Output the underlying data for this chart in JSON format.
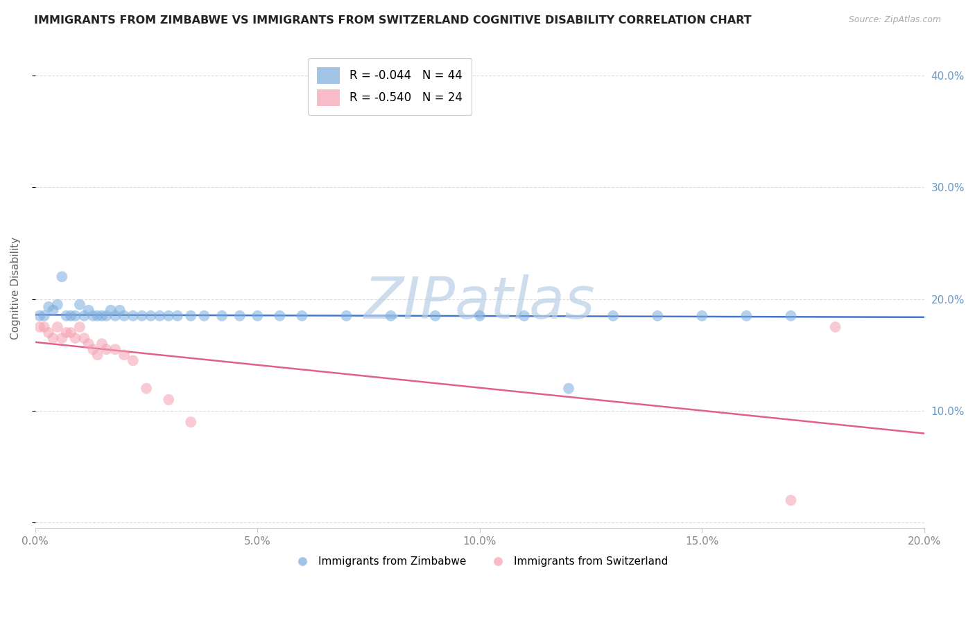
{
  "title": "IMMIGRANTS FROM ZIMBABWE VS IMMIGRANTS FROM SWITZERLAND COGNITIVE DISABILITY CORRELATION CHART",
  "source": "Source: ZipAtlas.com",
  "ylabel": "Cognitive Disability",
  "xlim": [
    0.0,
    0.2
  ],
  "ylim": [
    -0.005,
    0.425
  ],
  "legend_entries": [
    {
      "label": "R = -0.044   N = 44",
      "color": "#7aacdc"
    },
    {
      "label": "R = -0.540   N = 24",
      "color": "#f4a0b0"
    }
  ],
  "watermark": "ZIPatlas",
  "series_zimbabwe": {
    "color": "#7aacdc",
    "line_color": "#4477cc",
    "x": [
      0.001,
      0.002,
      0.003,
      0.004,
      0.005,
      0.006,
      0.007,
      0.008,
      0.009,
      0.01,
      0.011,
      0.012,
      0.013,
      0.014,
      0.015,
      0.016,
      0.017,
      0.018,
      0.019,
      0.02,
      0.022,
      0.024,
      0.026,
      0.028,
      0.03,
      0.032,
      0.035,
      0.038,
      0.042,
      0.046,
      0.05,
      0.055,
      0.06,
      0.07,
      0.08,
      0.09,
      0.1,
      0.11,
      0.12,
      0.13,
      0.14,
      0.15,
      0.16,
      0.17
    ],
    "y": [
      0.185,
      0.185,
      0.193,
      0.19,
      0.195,
      0.22,
      0.185,
      0.185,
      0.185,
      0.195,
      0.185,
      0.19,
      0.185,
      0.185,
      0.185,
      0.185,
      0.19,
      0.185,
      0.19,
      0.185,
      0.185,
      0.185,
      0.185,
      0.185,
      0.185,
      0.185,
      0.185,
      0.185,
      0.185,
      0.185,
      0.185,
      0.185,
      0.185,
      0.185,
      0.185,
      0.185,
      0.185,
      0.185,
      0.12,
      0.185,
      0.185,
      0.185,
      0.185,
      0.185
    ]
  },
  "series_switzerland": {
    "color": "#f4a0b0",
    "line_color": "#e0608a",
    "x": [
      0.001,
      0.002,
      0.003,
      0.004,
      0.005,
      0.006,
      0.007,
      0.008,
      0.009,
      0.01,
      0.011,
      0.012,
      0.013,
      0.014,
      0.015,
      0.016,
      0.018,
      0.02,
      0.022,
      0.025,
      0.03,
      0.035,
      0.17,
      0.18
    ],
    "y": [
      0.175,
      0.175,
      0.17,
      0.165,
      0.175,
      0.165,
      0.17,
      0.17,
      0.165,
      0.175,
      0.165,
      0.16,
      0.155,
      0.15,
      0.16,
      0.155,
      0.155,
      0.15,
      0.145,
      0.12,
      0.11,
      0.09,
      0.02,
      0.175
    ]
  },
  "background_color": "#ffffff",
  "grid_color": "#dddddd",
  "title_fontsize": 11.5,
  "axis_label_fontsize": 11,
  "tick_fontsize": 11,
  "watermark_color": "#b8cfe8",
  "watermark_fontsize": 60,
  "right_tick_color": "#6699cc"
}
